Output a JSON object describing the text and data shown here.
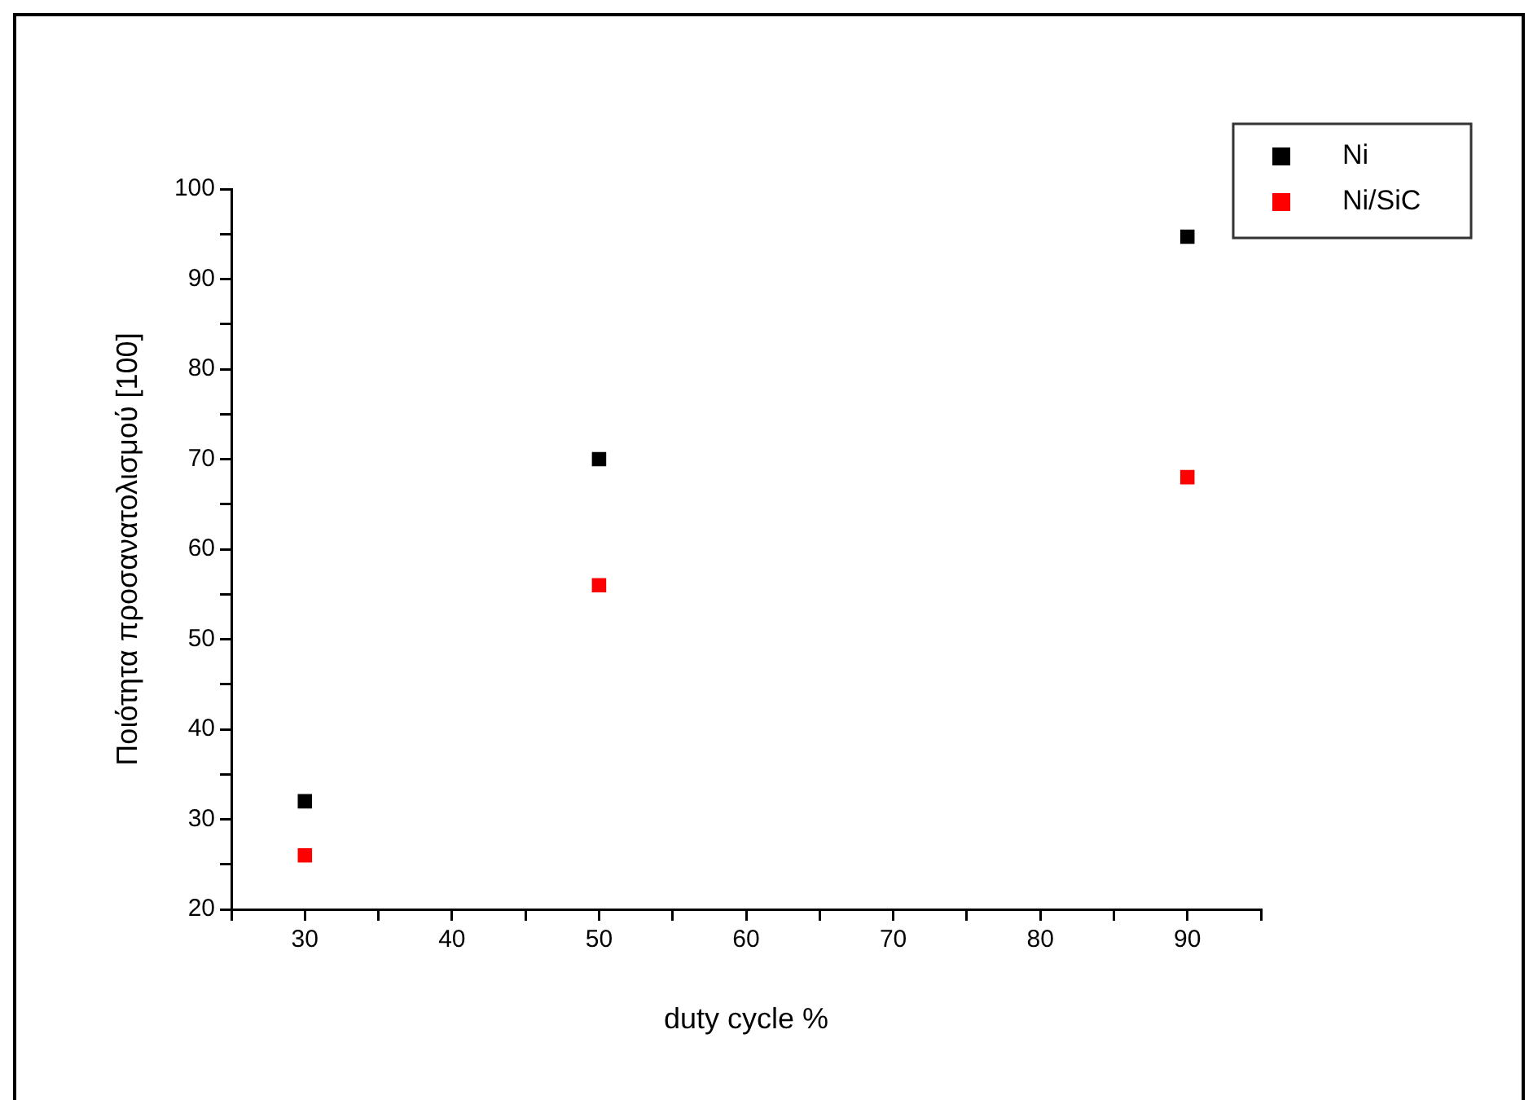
{
  "chart_data": {
    "type": "scatter",
    "xlabel": "duty cycle %",
    "ylabel": "Ποιότητα προσανατολισμού [100]",
    "x": [
      30,
      50,
      90
    ],
    "series": [
      {
        "name": "Ni",
        "color": "#000000",
        "values": [
          32,
          70,
          94.7
        ]
      },
      {
        "name": "Ni/SiC",
        "color": "#ff0000",
        "values": [
          26,
          56,
          68
        ]
      }
    ],
    "xlim": [
      25,
      95
    ],
    "xticks": [
      {
        "value": 25,
        "label": null
      },
      30,
      {
        "value": 35,
        "label": null
      },
      40,
      {
        "value": 45,
        "label": null
      },
      50,
      {
        "value": 55,
        "label": null
      },
      60,
      {
        "value": 65,
        "label": null
      },
      70,
      {
        "value": 75,
        "label": null
      },
      80,
      {
        "value": 85,
        "label": null
      },
      90,
      {
        "value": 95,
        "label": null
      }
    ],
    "ylim": [
      20,
      100
    ],
    "yticks": [
      20,
      {
        "value": 25,
        "label": null
      },
      30,
      {
        "value": 35,
        "label": null
      },
      40,
      {
        "value": 45,
        "label": null
      },
      50,
      {
        "value": 55,
        "label": null
      },
      60,
      {
        "value": 65,
        "label": null
      },
      70,
      {
        "value": 75,
        "label": null
      },
      80,
      {
        "value": 85,
        "label": null
      },
      90,
      {
        "value": 95,
        "label": null
      },
      100
    ],
    "grid": false,
    "legend": "top right",
    "marker": "square"
  }
}
